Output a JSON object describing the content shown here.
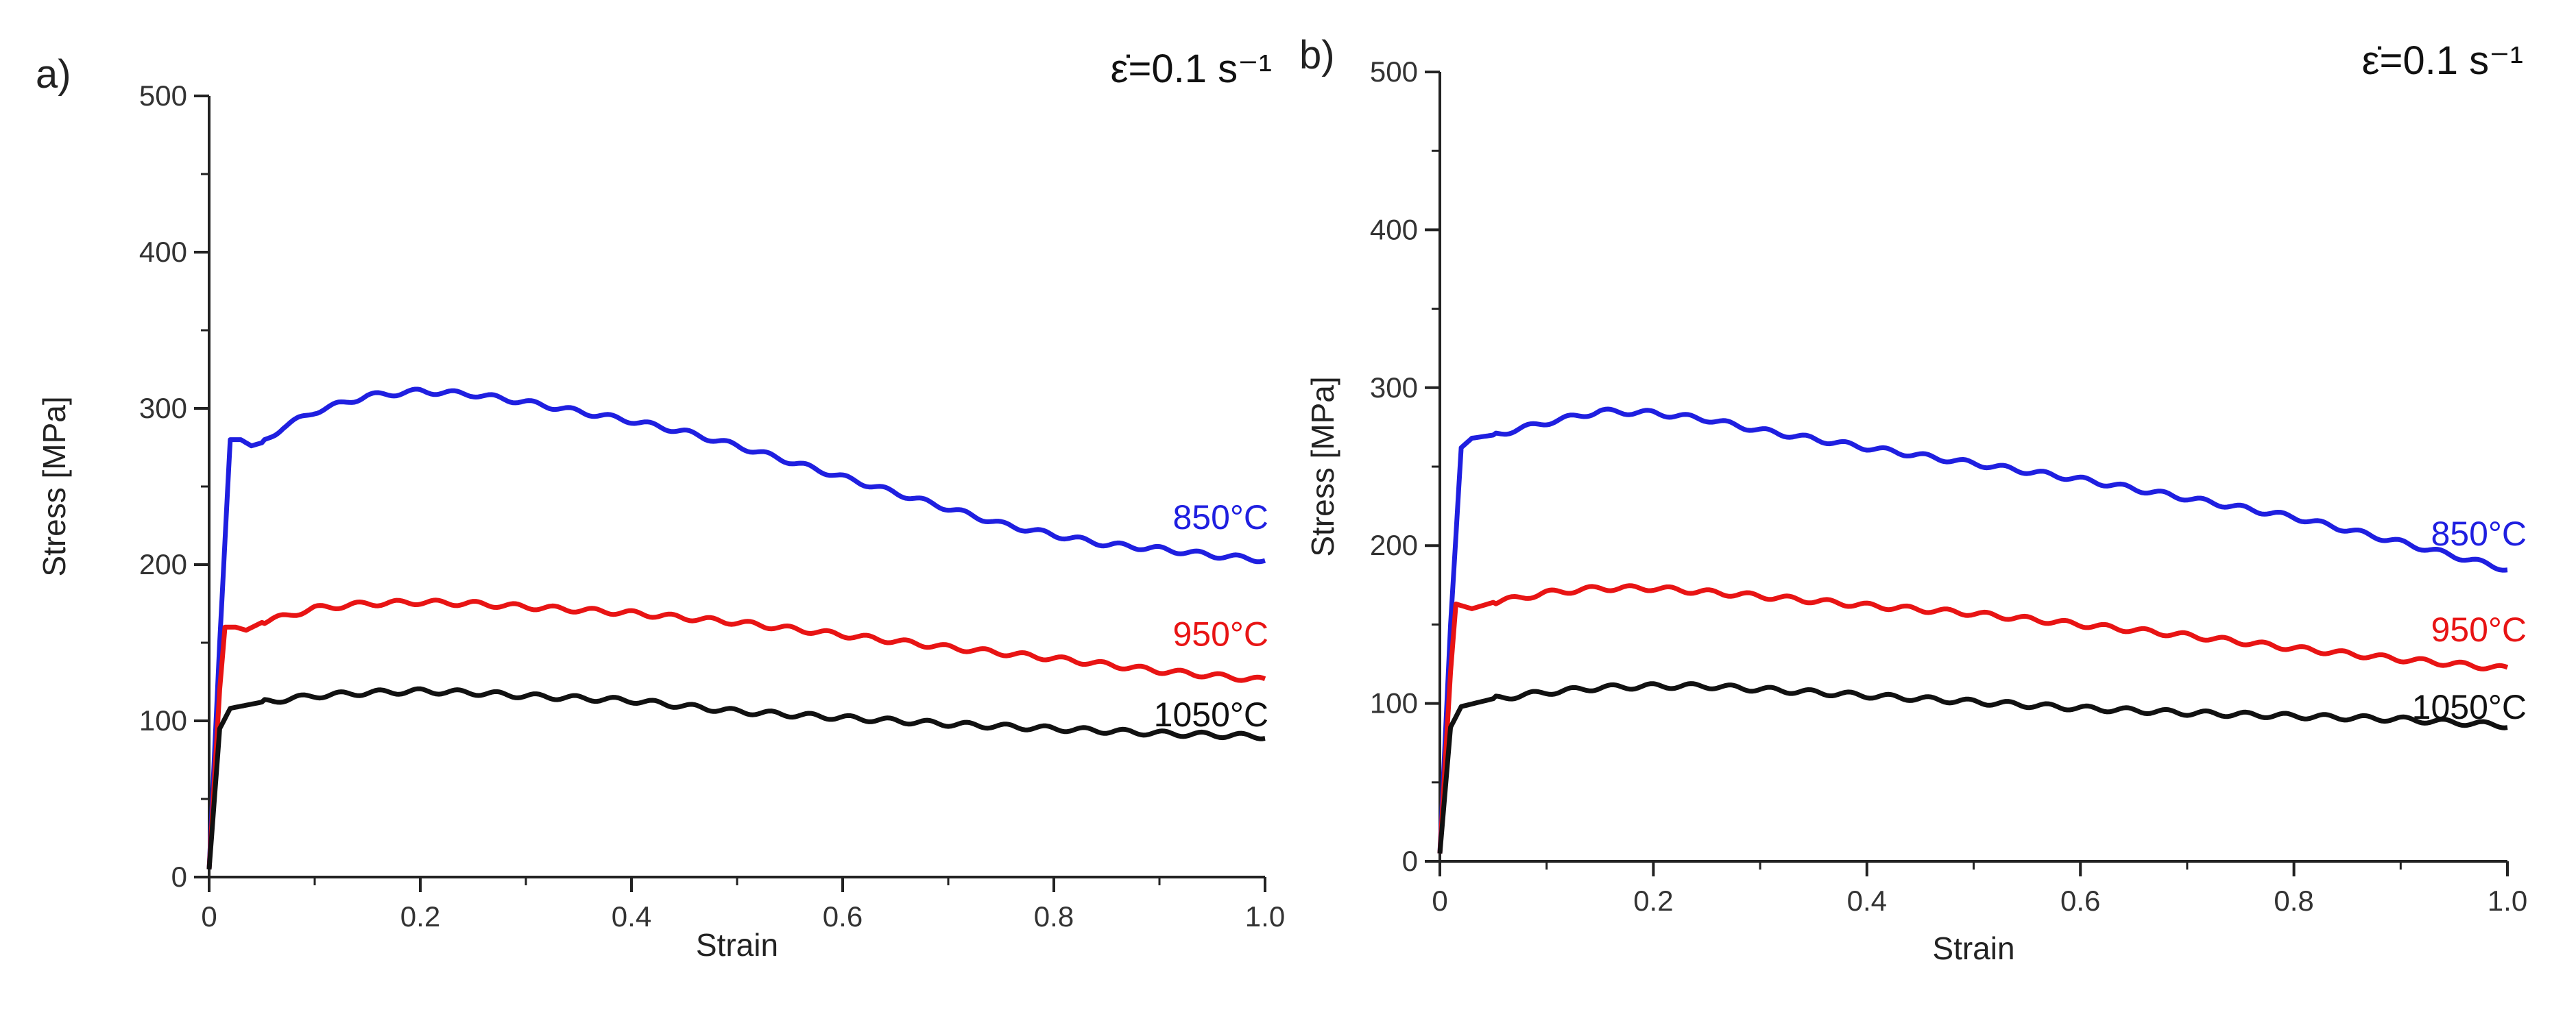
{
  "chart_data": [
    {
      "type": "line",
      "panel_label": "a)",
      "rate_label": "ε̇=0.1 s⁻¹",
      "xlabel": "Strain",
      "ylabel": "Stress [MPa]",
      "xlim": [
        0,
        1.0
      ],
      "ylim": [
        0,
        500
      ],
      "x_ticks": [
        "0",
        "0.2",
        "0.4",
        "0.6",
        "0.8",
        "1.0"
      ],
      "y_ticks": [
        "0",
        "100",
        "200",
        "300",
        "400",
        "500"
      ],
      "series": [
        {
          "name": "850°C",
          "color": "#1f1fe0",
          "points": [
            [
              0,
              5
            ],
            [
              0.01,
              150
            ],
            [
              0.02,
              280
            ],
            [
              0.03,
              280
            ],
            [
              0.04,
              276
            ],
            [
              0.05,
              278
            ],
            [
              0.07,
              288
            ],
            [
              0.1,
              298
            ],
            [
              0.15,
              308
            ],
            [
              0.2,
              311
            ],
            [
              0.25,
              309
            ],
            [
              0.3,
              304
            ],
            [
              0.35,
              298
            ],
            [
              0.4,
              292
            ],
            [
              0.45,
              285
            ],
            [
              0.5,
              276
            ],
            [
              0.55,
              266
            ],
            [
              0.6,
              256
            ],
            [
              0.65,
              246
            ],
            [
              0.7,
              236
            ],
            [
              0.75,
              226
            ],
            [
              0.8,
              219
            ],
            [
              0.85,
              213
            ],
            [
              0.9,
              210
            ],
            [
              0.95,
              206
            ],
            [
              1.0,
              203
            ]
          ]
        },
        {
          "name": "950°C",
          "color": "#e81414",
          "points": [
            [
              0,
              5
            ],
            [
              0.01,
              120
            ],
            [
              0.015,
              160
            ],
            [
              0.025,
              160
            ],
            [
              0.035,
              158
            ],
            [
              0.05,
              163
            ],
            [
              0.1,
              172
            ],
            [
              0.15,
              175
            ],
            [
              0.2,
              176
            ],
            [
              0.25,
              175
            ],
            [
              0.3,
              173
            ],
            [
              0.4,
              169
            ],
            [
              0.5,
              163
            ],
            [
              0.6,
              155
            ],
            [
              0.7,
              147
            ],
            [
              0.8,
              140
            ],
            [
              0.9,
              132
            ],
            [
              1.0,
              126
            ]
          ]
        },
        {
          "name": "1050°C",
          "color": "#111111",
          "points": [
            [
              0,
              5
            ],
            [
              0.01,
              95
            ],
            [
              0.02,
              108
            ],
            [
              0.05,
              112
            ],
            [
              0.1,
              116
            ],
            [
              0.15,
              118
            ],
            [
              0.2,
              119
            ],
            [
              0.25,
              118
            ],
            [
              0.3,
              116
            ],
            [
              0.4,
              113
            ],
            [
              0.5,
              106
            ],
            [
              0.6,
              102
            ],
            [
              0.7,
              98
            ],
            [
              0.8,
              95
            ],
            [
              0.9,
              92
            ],
            [
              1.0,
              90
            ]
          ]
        }
      ]
    },
    {
      "type": "line",
      "panel_label": "b)",
      "rate_label": "ε̇=0.1 s⁻¹",
      "xlabel": "Strain",
      "ylabel": "Stress [MPa]",
      "xlim": [
        0,
        1.0
      ],
      "ylim": [
        0,
        500
      ],
      "x_ticks": [
        "0",
        "0.2",
        "0.4",
        "0.6",
        "0.8",
        "1.0"
      ],
      "y_ticks": [
        "0",
        "100",
        "200",
        "300",
        "400",
        "500"
      ],
      "series": [
        {
          "name": "850°C",
          "color": "#1f1fe0",
          "points": [
            [
              0,
              5
            ],
            [
              0.01,
              150
            ],
            [
              0.02,
              262
            ],
            [
              0.03,
              268
            ],
            [
              0.05,
              270
            ],
            [
              0.1,
              278
            ],
            [
              0.15,
              285
            ],
            [
              0.2,
              284
            ],
            [
              0.25,
              280
            ],
            [
              0.3,
              273
            ],
            [
              0.4,
              262
            ],
            [
              0.5,
              252
            ],
            [
              0.6,
              242
            ],
            [
              0.7,
              230
            ],
            [
              0.8,
              218
            ],
            [
              0.9,
              202
            ],
            [
              1.0,
              185
            ]
          ]
        },
        {
          "name": "950°C",
          "color": "#e81414",
          "points": [
            [
              0,
              5
            ],
            [
              0.01,
              120
            ],
            [
              0.015,
              163
            ],
            [
              0.03,
              160
            ],
            [
              0.05,
              164
            ],
            [
              0.1,
              170
            ],
            [
              0.15,
              173
            ],
            [
              0.2,
              173
            ],
            [
              0.3,
              168
            ],
            [
              0.4,
              162
            ],
            [
              0.5,
              157
            ],
            [
              0.6,
              150
            ],
            [
              0.7,
              143
            ],
            [
              0.8,
              135
            ],
            [
              0.9,
              128
            ],
            [
              1.0,
              122
            ]
          ]
        },
        {
          "name": "1050°C",
          "color": "#111111",
          "points": [
            [
              0,
              5
            ],
            [
              0.01,
              85
            ],
            [
              0.02,
              98
            ],
            [
              0.05,
              103
            ],
            [
              0.1,
              107
            ],
            [
              0.15,
              110
            ],
            [
              0.2,
              111
            ],
            [
              0.25,
              111
            ],
            [
              0.3,
              109
            ],
            [
              0.4,
              105
            ],
            [
              0.5,
              101
            ],
            [
              0.6,
              97
            ],
            [
              0.7,
              94
            ],
            [
              0.8,
              92
            ],
            [
              0.9,
              90
            ],
            [
              1.0,
              86
            ]
          ]
        }
      ]
    }
  ]
}
